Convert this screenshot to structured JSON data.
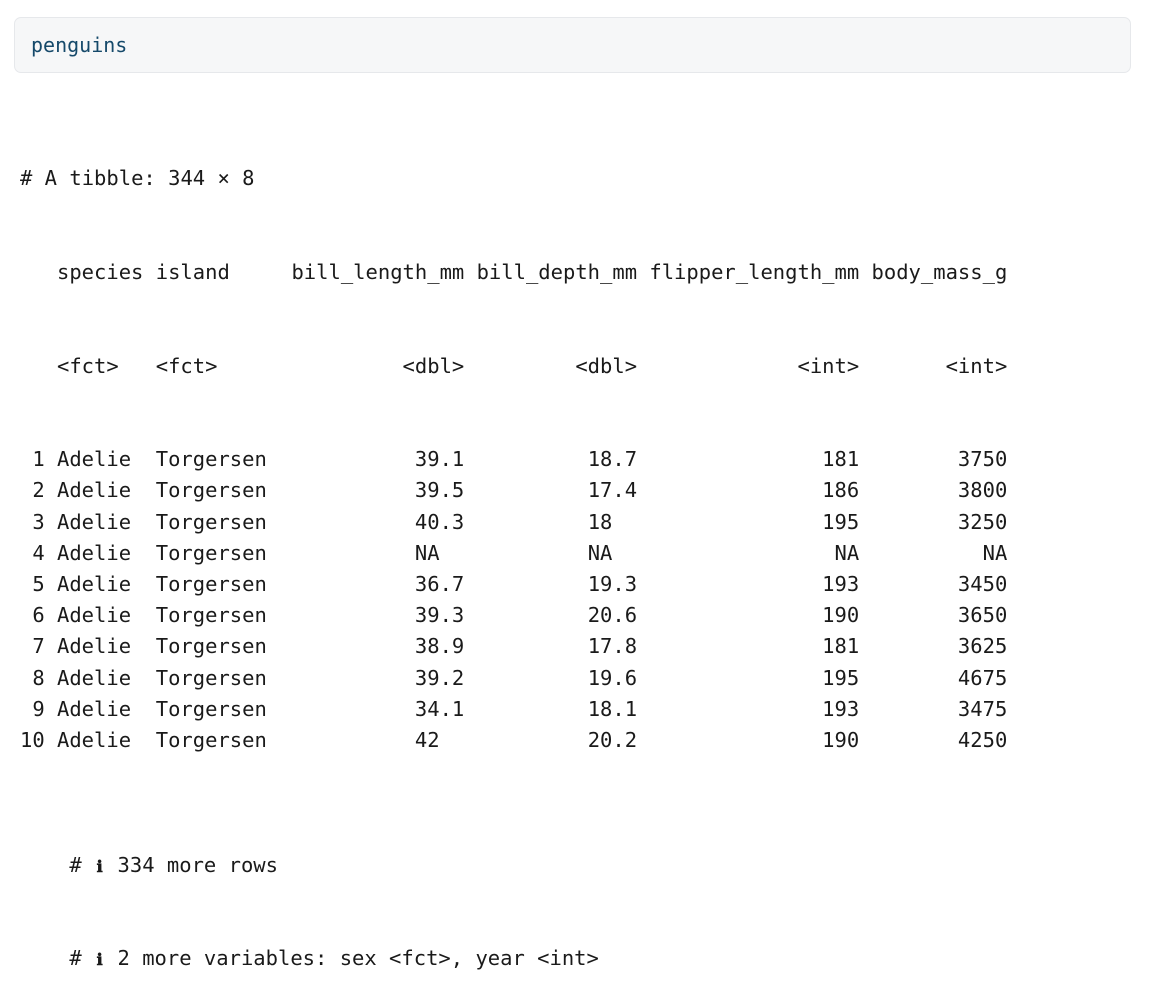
{
  "code": "penguins",
  "output": {
    "header": "# A tibble: 344 × 8",
    "columns": [
      "species",
      "island",
      "bill_length_mm",
      "bill_depth_mm",
      "flipper_length_mm",
      "body_mass_g"
    ],
    "types": [
      "<fct>",
      "<fct>",
      "<dbl>",
      "<dbl>",
      "<int>",
      "<int>"
    ],
    "rows": [
      {
        "n": "1",
        "species": "Adelie",
        "island": "Torgersen",
        "bill_length": "39.1",
        "bill_depth": "18.7",
        "flipper": "181",
        "mass": "3750"
      },
      {
        "n": "2",
        "species": "Adelie",
        "island": "Torgersen",
        "bill_length": "39.5",
        "bill_depth": "17.4",
        "flipper": "186",
        "mass": "3800"
      },
      {
        "n": "3",
        "species": "Adelie",
        "island": "Torgersen",
        "bill_length": "40.3",
        "bill_depth": "18",
        "flipper": "195",
        "mass": "3250"
      },
      {
        "n": "4",
        "species": "Adelie",
        "island": "Torgersen",
        "bill_length": "NA",
        "bill_depth": "NA",
        "flipper": "NA",
        "mass": "NA"
      },
      {
        "n": "5",
        "species": "Adelie",
        "island": "Torgersen",
        "bill_length": "36.7",
        "bill_depth": "19.3",
        "flipper": "193",
        "mass": "3450"
      },
      {
        "n": "6",
        "species": "Adelie",
        "island": "Torgersen",
        "bill_length": "39.3",
        "bill_depth": "20.6",
        "flipper": "190",
        "mass": "3650"
      },
      {
        "n": "7",
        "species": "Adelie",
        "island": "Torgersen",
        "bill_length": "38.9",
        "bill_depth": "17.8",
        "flipper": "181",
        "mass": "3625"
      },
      {
        "n": "8",
        "species": "Adelie",
        "island": "Torgersen",
        "bill_length": "39.2",
        "bill_depth": "19.6",
        "flipper": "195",
        "mass": "4675"
      },
      {
        "n": "9",
        "species": "Adelie",
        "island": "Torgersen",
        "bill_length": "34.1",
        "bill_depth": "18.1",
        "flipper": "193",
        "mass": "3475"
      },
      {
        "n": "10",
        "species": "Adelie",
        "island": "Torgersen",
        "bill_length": "42",
        "bill_depth": "20.2",
        "flipper": "190",
        "mass": "4250"
      }
    ],
    "footer_icon_glyph": "ℹ",
    "footer_lines": [
      "334 more rows",
      "2 more variables: sex <fct>, year <int>"
    ],
    "footer_prefix": "#"
  },
  "colors": {
    "code_text": "#15496a",
    "code_bg": "#f6f7f8",
    "output_text": "#1a1a1a"
  },
  "icons": {
    "footer_icon": "info-icon"
  }
}
